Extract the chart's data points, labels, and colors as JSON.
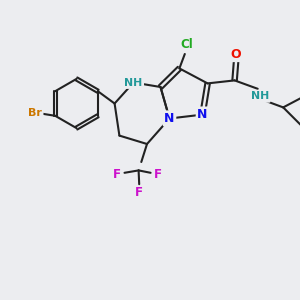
{
  "background_color": "#ecedf0",
  "bond_color": "#222222",
  "colors": {
    "Br": "#cc7700",
    "N": "#1010ee",
    "O": "#ee1100",
    "Cl": "#22aa22",
    "F": "#cc11cc",
    "NH": "#229999",
    "C": "#222222"
  },
  "figsize": [
    3.0,
    3.0
  ],
  "dpi": 100
}
